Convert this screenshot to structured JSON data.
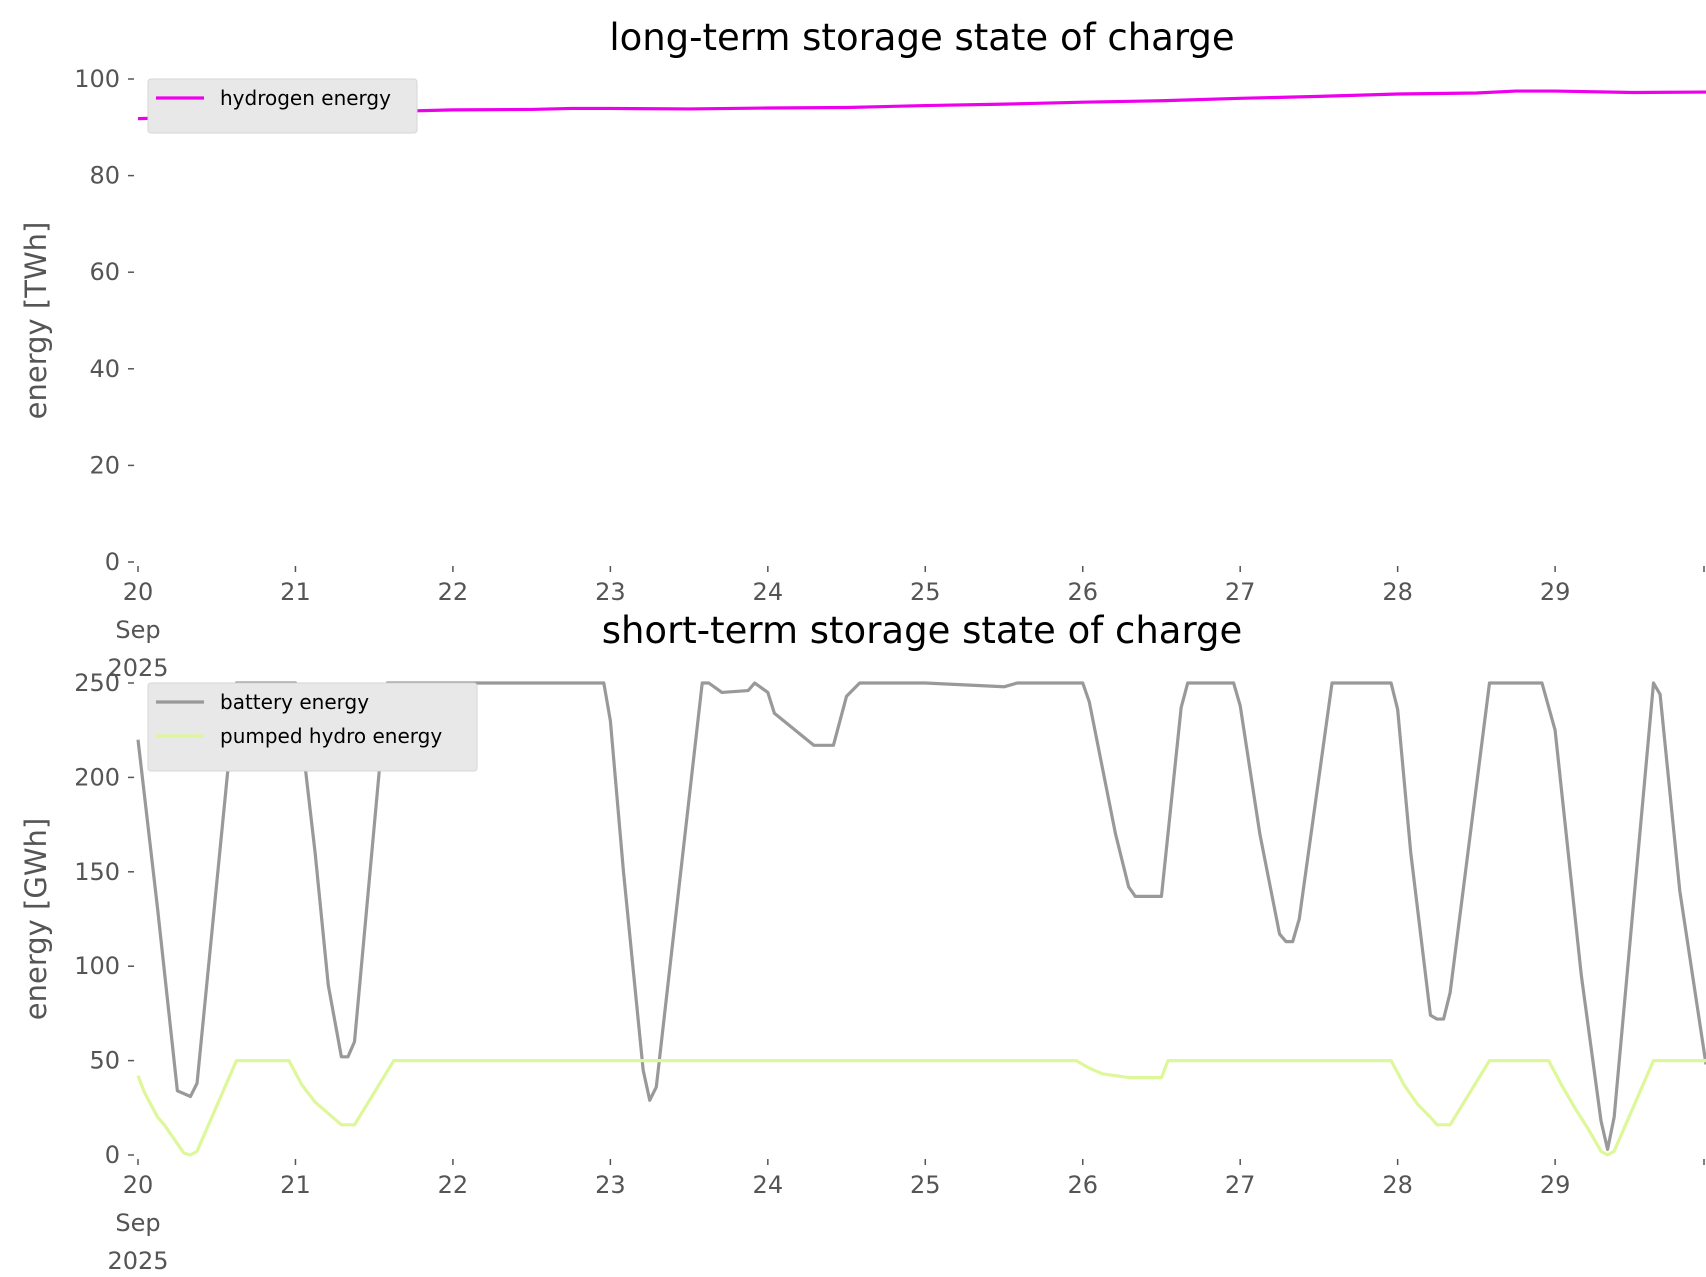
{
  "chart_data": [
    {
      "type": "line",
      "title": "long-term storage state of charge",
      "ylabel": "energy [TWh]",
      "xlabel": "",
      "x_unit": "date",
      "xlim": [
        "2025-09-20 00:00",
        "2025-09-29 23:00"
      ],
      "ylim": [
        0,
        100
      ],
      "y_ticks": [
        0,
        20,
        40,
        60,
        80,
        100
      ],
      "x_ticks": [
        {
          "at": "2025-09-20",
          "lines": [
            "20",
            "Sep",
            "2025"
          ]
        },
        {
          "at": "2025-09-21",
          "lines": [
            "21"
          ]
        },
        {
          "at": "2025-09-22",
          "lines": [
            "22"
          ]
        },
        {
          "at": "2025-09-23",
          "lines": [
            "23"
          ]
        },
        {
          "at": "2025-09-24",
          "lines": [
            "24"
          ]
        },
        {
          "at": "2025-09-25",
          "lines": [
            "25"
          ]
        },
        {
          "at": "2025-09-26",
          "lines": [
            "26"
          ]
        },
        {
          "at": "2025-09-27",
          "lines": [
            "27"
          ]
        },
        {
          "at": "2025-09-28",
          "lines": [
            "28"
          ]
        },
        {
          "at": "2025-09-29",
          "lines": [
            "29"
          ]
        }
      ],
      "legend_position": "top-left",
      "grid": false,
      "series": [
        {
          "name": "hydrogen energy",
          "color": "#ee00ee",
          "points": [
            [
              "2025-09-20 00:00",
              91.8
            ],
            [
              "2025-09-20 12:00",
              92.2
            ],
            [
              "2025-09-21 00:00",
              92.8
            ],
            [
              "2025-09-21 12:00",
              93.2
            ],
            [
              "2025-09-22 00:00",
              93.6
            ],
            [
              "2025-09-22 12:00",
              93.7
            ],
            [
              "2025-09-22 18:00",
              93.9
            ],
            [
              "2025-09-23 00:00",
              93.9
            ],
            [
              "2025-09-23 12:00",
              93.8
            ],
            [
              "2025-09-24 00:00",
              94.0
            ],
            [
              "2025-09-24 12:00",
              94.1
            ],
            [
              "2025-09-25 00:00",
              94.5
            ],
            [
              "2025-09-25 12:00",
              94.8
            ],
            [
              "2025-09-26 00:00",
              95.2
            ],
            [
              "2025-09-26 12:00",
              95.5
            ],
            [
              "2025-09-27 00:00",
              96.0
            ],
            [
              "2025-09-27 12:00",
              96.4
            ],
            [
              "2025-09-28 00:00",
              96.9
            ],
            [
              "2025-09-28 12:00",
              97.1
            ],
            [
              "2025-09-28 18:00",
              97.5
            ],
            [
              "2025-09-29 00:00",
              97.5
            ],
            [
              "2025-09-29 12:00",
              97.2
            ],
            [
              "2025-09-29 23:00",
              97.3
            ]
          ]
        }
      ]
    },
    {
      "type": "line",
      "title": "short-term storage state of charge",
      "ylabel": "energy [GWh]",
      "xlabel": "",
      "x_unit": "date",
      "xlim": [
        "2025-09-20 00:00",
        "2025-09-29 23:00"
      ],
      "ylim": [
        0,
        250
      ],
      "y_ticks": [
        0,
        50,
        100,
        150,
        200,
        250
      ],
      "x_ticks": [
        {
          "at": "2025-09-20",
          "lines": [
            "20",
            "Sep",
            "2025"
          ]
        },
        {
          "at": "2025-09-21",
          "lines": [
            "21"
          ]
        },
        {
          "at": "2025-09-22",
          "lines": [
            "22"
          ]
        },
        {
          "at": "2025-09-23",
          "lines": [
            "23"
          ]
        },
        {
          "at": "2025-09-24",
          "lines": [
            "24"
          ]
        },
        {
          "at": "2025-09-25",
          "lines": [
            "25"
          ]
        },
        {
          "at": "2025-09-26",
          "lines": [
            "26"
          ]
        },
        {
          "at": "2025-09-27",
          "lines": [
            "27"
          ]
        },
        {
          "at": "2025-09-28",
          "lines": [
            "28"
          ]
        },
        {
          "at": "2025-09-29",
          "lines": [
            "29"
          ]
        }
      ],
      "legend_position": "top-left",
      "grid": false,
      "series": [
        {
          "name": "battery energy",
          "color": "#999999",
          "points": [
            [
              "2025-09-20 00:00",
              220
            ],
            [
              "2025-09-20 03:00",
              130
            ],
            [
              "2025-09-20 06:00",
              34
            ],
            [
              "2025-09-20 08:00",
              31
            ],
            [
              "2025-09-20 09:00",
              38
            ],
            [
              "2025-09-20 15:00",
              250
            ],
            [
              "2025-09-21 00:00",
              250
            ],
            [
              "2025-09-21 03:00",
              160
            ],
            [
              "2025-09-21 05:00",
              90
            ],
            [
              "2025-09-21 07:00",
              52
            ],
            [
              "2025-09-21 08:00",
              52
            ],
            [
              "2025-09-21 09:00",
              60
            ],
            [
              "2025-09-21 14:00",
              250
            ],
            [
              "2025-09-22 23:00",
              250
            ],
            [
              "2025-09-23 00:00",
              230
            ],
            [
              "2025-09-23 02:00",
              150
            ],
            [
              "2025-09-23 05:00",
              45
            ],
            [
              "2025-09-23 06:00",
              29
            ],
            [
              "2025-09-23 07:00",
              36
            ],
            [
              "2025-09-23 14:00",
              250
            ],
            [
              "2025-09-23 15:00",
              250
            ],
            [
              "2025-09-23 17:00",
              245
            ],
            [
              "2025-09-23 21:00",
              246
            ],
            [
              "2025-09-23 22:00",
              250
            ],
            [
              "2025-09-24 00:00",
              245
            ],
            [
              "2025-09-24 01:00",
              234
            ],
            [
              "2025-09-24 07:00",
              217
            ],
            [
              "2025-09-24 10:00",
              217
            ],
            [
              "2025-09-24 12:00",
              243
            ],
            [
              "2025-09-24 14:00",
              250
            ],
            [
              "2025-09-25 00:00",
              250
            ],
            [
              "2025-09-25 12:00",
              248
            ],
            [
              "2025-09-25 14:00",
              250
            ],
            [
              "2025-09-26 00:00",
              250
            ],
            [
              "2025-09-26 01:00",
              240
            ],
            [
              "2025-09-26 05:00",
              170
            ],
            [
              "2025-09-26 07:00",
              142
            ],
            [
              "2025-09-26 08:00",
              137
            ],
            [
              "2025-09-26 12:00",
              137
            ],
            [
              "2025-09-26 15:00",
              237
            ],
            [
              "2025-09-26 16:00",
              250
            ],
            [
              "2025-09-26 23:00",
              250
            ],
            [
              "2025-09-27 00:00",
              238
            ],
            [
              "2025-09-27 03:00",
              170
            ],
            [
              "2025-09-27 06:00",
              117
            ],
            [
              "2025-09-27 07:00",
              113
            ],
            [
              "2025-09-27 08:00",
              113
            ],
            [
              "2025-09-27 09:00",
              125
            ],
            [
              "2025-09-27 14:00",
              250
            ],
            [
              "2025-09-27 23:00",
              250
            ],
            [
              "2025-09-28 00:00",
              236
            ],
            [
              "2025-09-28 02:00",
              160
            ],
            [
              "2025-09-28 05:00",
              74
            ],
            [
              "2025-09-28 06:00",
              72
            ],
            [
              "2025-09-28 07:00",
              72
            ],
            [
              "2025-09-28 08:00",
              86
            ],
            [
              "2025-09-28 14:00",
              250
            ],
            [
              "2025-09-28 22:00",
              250
            ],
            [
              "2025-09-29 00:00",
              225
            ],
            [
              "2025-09-29 04:00",
              95
            ],
            [
              "2025-09-29 07:00",
              18
            ],
            [
              "2025-09-29 08:00",
              3
            ],
            [
              "2025-09-29 09:00",
              20
            ],
            [
              "2025-09-29 15:00",
              250
            ],
            [
              "2025-09-29 16:00",
              244
            ],
            [
              "2025-09-29 19:00",
              140
            ],
            [
              "2025-09-29 23:00",
              48
            ]
          ]
        },
        {
          "name": "pumped hydro energy",
          "color": "#ddf799",
          "points": [
            [
              "2025-09-20 00:00",
              42
            ],
            [
              "2025-09-20 01:00",
              33
            ],
            [
              "2025-09-20 03:00",
              20
            ],
            [
              "2025-09-20 04:00",
              16
            ],
            [
              "2025-09-20 07:00",
              1
            ],
            [
              "2025-09-20 08:00",
              0
            ],
            [
              "2025-09-20 09:00",
              2
            ],
            [
              "2025-09-20 15:00",
              50
            ],
            [
              "2025-09-20 23:00",
              50
            ],
            [
              "2025-09-21 01:00",
              37
            ],
            [
              "2025-09-21 03:00",
              28
            ],
            [
              "2025-09-21 05:00",
              22
            ],
            [
              "2025-09-21 07:00",
              16
            ],
            [
              "2025-09-21 09:00",
              16
            ],
            [
              "2025-09-21 15:00",
              50
            ],
            [
              "2025-09-25 23:00",
              50
            ],
            [
              "2025-09-26 01:00",
              46
            ],
            [
              "2025-09-26 03:00",
              43
            ],
            [
              "2025-09-26 07:00",
              41
            ],
            [
              "2025-09-26 12:00",
              41
            ],
            [
              "2025-09-26 13:00",
              50
            ],
            [
              "2025-09-27 23:00",
              50
            ],
            [
              "2025-09-28 01:00",
              37
            ],
            [
              "2025-09-28 03:00",
              27
            ],
            [
              "2025-09-28 05:00",
              20
            ],
            [
              "2025-09-28 06:00",
              16
            ],
            [
              "2025-09-28 08:00",
              16
            ],
            [
              "2025-09-28 14:00",
              50
            ],
            [
              "2025-09-28 23:00",
              50
            ],
            [
              "2025-09-29 01:00",
              37
            ],
            [
              "2025-09-29 03:00",
              25
            ],
            [
              "2025-09-29 05:00",
              14
            ],
            [
              "2025-09-29 07:00",
              2
            ],
            [
              "2025-09-29 08:00",
              0
            ],
            [
              "2025-09-29 09:00",
              2
            ],
            [
              "2025-09-29 15:00",
              50
            ],
            [
              "2025-09-29 23:00",
              50
            ]
          ]
        }
      ]
    }
  ]
}
